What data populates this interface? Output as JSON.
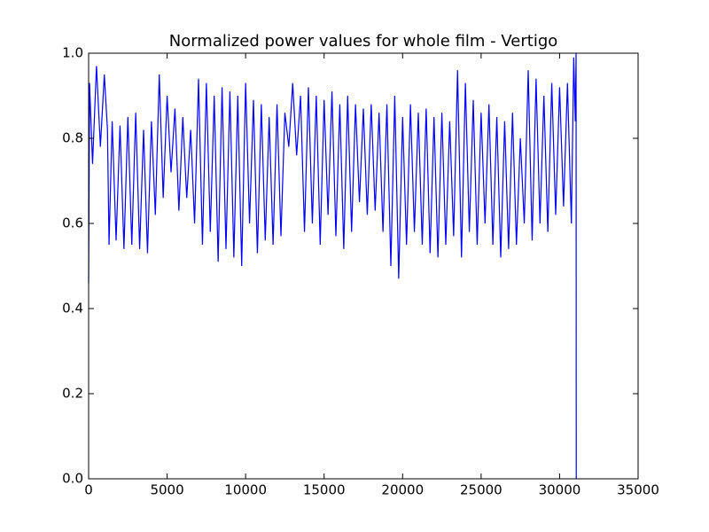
{
  "chart_data": {
    "type": "line",
    "title": "Normalized power values for whole film - Vertigo",
    "color": "#0000ff",
    "xlim": [
      0,
      35000
    ],
    "xticks": [
      0,
      5000,
      10000,
      15000,
      20000,
      25000,
      30000,
      35000
    ],
    "ylim": [
      0,
      1
    ],
    "yticks": [
      {
        "value": 0,
        "label": "0.0"
      },
      0.2,
      0.4,
      0.6,
      0.8,
      {
        "value": 1,
        "label": "1.0"
      }
    ],
    "grid": false,
    "x": [
      0,
      60,
      250,
      500,
      750,
      1000,
      1200,
      1300,
      1500,
      1750,
      2000,
      2250,
      2500,
      2750,
      3000,
      3250,
      3500,
      3750,
      4000,
      4250,
      4500,
      4750,
      5000,
      5250,
      5500,
      5750,
      6000,
      6250,
      6500,
      6750,
      7000,
      7250,
      7500,
      7750,
      8000,
      8250,
      8500,
      8750,
      9000,
      9250,
      9500,
      9750,
      10000,
      10250,
      10500,
      10750,
      11000,
      11250,
      11500,
      11750,
      12000,
      12250,
      12500,
      12750,
      13000,
      13250,
      13500,
      13750,
      14000,
      14250,
      14500,
      14750,
      15000,
      15250,
      15500,
      15750,
      16000,
      16250,
      16500,
      16750,
      17000,
      17250,
      17500,
      17750,
      18000,
      18250,
      18500,
      18750,
      19000,
      19250,
      19500,
      19750,
      20000,
      20250,
      20500,
      20750,
      21000,
      21250,
      21500,
      21750,
      22000,
      22250,
      22500,
      22750,
      23000,
      23250,
      23500,
      23750,
      24000,
      24250,
      24500,
      24750,
      25000,
      25250,
      25500,
      25750,
      26000,
      26250,
      26500,
      26750,
      27000,
      27250,
      27500,
      27750,
      28000,
      28250,
      28500,
      28750,
      29000,
      29250,
      29500,
      29750,
      30000,
      30250,
      30500,
      30750,
      30900,
      31000,
      31050,
      31060
    ],
    "values": [
      0.46,
      0.93,
      0.74,
      0.97,
      0.78,
      0.95,
      0.82,
      0.55,
      0.84,
      0.56,
      0.83,
      0.54,
      0.85,
      0.55,
      0.86,
      0.54,
      0.82,
      0.53,
      0.84,
      0.62,
      0.95,
      0.66,
      0.9,
      0.72,
      0.87,
      0.63,
      0.85,
      0.66,
      0.82,
      0.6,
      0.94,
      0.55,
      0.93,
      0.58,
      0.9,
      0.51,
      0.92,
      0.54,
      0.91,
      0.52,
      0.9,
      0.5,
      0.93,
      0.6,
      0.89,
      0.53,
      0.88,
      0.56,
      0.85,
      0.55,
      0.88,
      0.57,
      0.86,
      0.78,
      0.93,
      0.76,
      0.9,
      0.58,
      0.92,
      0.6,
      0.9,
      0.55,
      0.89,
      0.62,
      0.91,
      0.57,
      0.88,
      0.54,
      0.9,
      0.58,
      0.88,
      0.65,
      0.87,
      0.62,
      0.88,
      0.63,
      0.86,
      0.58,
      0.88,
      0.5,
      0.9,
      0.47,
      0.85,
      0.55,
      0.88,
      0.58,
      0.86,
      0.55,
      0.87,
      0.53,
      0.85,
      0.52,
      0.86,
      0.55,
      0.84,
      0.57,
      0.96,
      0.52,
      0.93,
      0.58,
      0.89,
      0.55,
      0.86,
      0.6,
      0.88,
      0.55,
      0.85,
      0.52,
      0.84,
      0.54,
      0.86,
      0.55,
      0.8,
      0.6,
      0.96,
      0.56,
      0.94,
      0.6,
      0.9,
      0.58,
      0.93,
      0.62,
      0.92,
      0.64,
      0.93,
      0.6,
      0.99,
      0.84,
      1.0,
      0.0
    ]
  }
}
